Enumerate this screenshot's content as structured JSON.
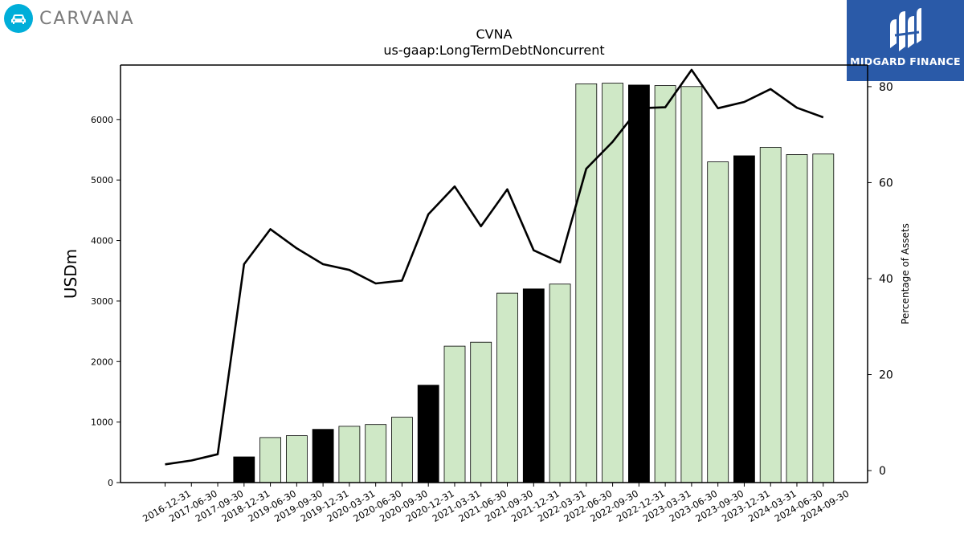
{
  "logos": {
    "left_brand": "CARVANA",
    "right_brand": "MIDGARD FINANCE"
  },
  "chart_data": {
    "type": "bar",
    "title": "CVNA",
    "subtitle": "us-gaap:LongTermDebtNoncurrent",
    "ylabel": "USDm",
    "y2label": "Percentage of Assets",
    "ylim": [
      0,
      6900
    ],
    "y2lim": [
      -2.5,
      84.5
    ],
    "yticks": [
      0,
      1000,
      2000,
      3000,
      4000,
      5000,
      6000
    ],
    "y2ticks": [
      0,
      20,
      40,
      60,
      80
    ],
    "categories": [
      "2016-12-31",
      "2017-06-30",
      "2017-09-30",
      "2018-12-31",
      "2019-06-30",
      "2019-09-30",
      "2019-12-31",
      "2020-03-31",
      "2020-06-30",
      "2020-09-30",
      "2020-12-31",
      "2021-03-31",
      "2021-06-30",
      "2021-09-30",
      "2021-12-31",
      "2022-03-31",
      "2022-06-30",
      "2022-09-30",
      "2022-12-31",
      "2023-03-31",
      "2023-06-30",
      "2023-09-30",
      "2023-12-31",
      "2024-03-31",
      "2024-06-30",
      "2024-09-30"
    ],
    "series": [
      {
        "values": [
          0,
          0,
          0,
          425,
          745,
          775,
          880,
          930,
          960,
          1080,
          1610,
          2255,
          2320,
          3130,
          3200,
          3280,
          6590,
          6600,
          6570,
          6560,
          6545,
          5300,
          5400,
          5540,
          5420,
          5430
        ],
        "annual": [
          false,
          false,
          false,
          true,
          false,
          false,
          true,
          false,
          false,
          false,
          true,
          false,
          false,
          false,
          true,
          false,
          false,
          false,
          true,
          false,
          false,
          false,
          true,
          false,
          false,
          false
        ]
      },
      {
        "values": [
          1.3,
          2.1,
          3.4,
          43.0,
          50.3,
          46.3,
          43.0,
          41.8,
          39.0,
          39.6,
          53.4,
          59.2,
          50.9,
          58.6,
          45.9,
          43.4,
          62.9,
          68.5,
          75.5,
          75.7,
          83.5,
          75.5,
          76.8,
          79.5,
          75.6,
          73.6
        ]
      }
    ],
    "colors": {
      "bar_quarter": "#cfe8c6",
      "bar_annual": "#000000",
      "line": "#000000"
    },
    "grid": false
  }
}
